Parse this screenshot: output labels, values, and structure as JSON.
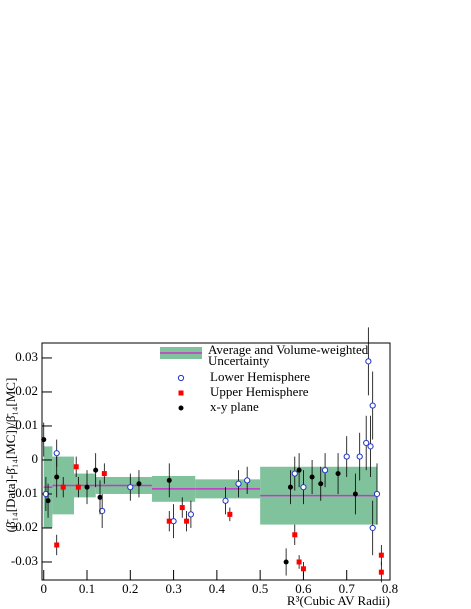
{
  "chart_data": {
    "type": "scatter",
    "y_label": "(β̄₁₄[Data]-β̄₁₄[MC])/β̄₁₄[MC]",
    "x_label": "R³(Cubic AV Radii)",
    "xlim": [
      -0.004,
      0.8
    ],
    "ylim": [
      -0.0353,
      0.0344
    ],
    "xticks": [
      0,
      0.1,
      0.2,
      0.3,
      0.4,
      0.5,
      0.6,
      0.7,
      0.8
    ],
    "yticks": [
      -0.03,
      -0.02,
      -0.01,
      0,
      0.01,
      0.02,
      0.03
    ],
    "average": {
      "name": "Average and Volume-weighted Uncertainty",
      "color": "#7fc29b",
      "line_color": "#cc33cc",
      "bins": [
        0,
        0.02,
        0.07,
        0.12,
        0.25,
        0.35,
        0.5,
        0.77
      ],
      "values": [
        -0.008,
        -0.0075,
        -0.0075,
        -0.0075,
        -0.0085,
        -0.0085,
        -0.0105
      ],
      "errors": [
        0.012,
        0.0085,
        0.0035,
        0.0025,
        0.0038,
        0.0028,
        0.0085
      ]
    },
    "series": [
      {
        "name": "Lower Hemisphere",
        "color": "#2233cc",
        "marker": "open-circle",
        "x": [
          0.005,
          0.03,
          0.135,
          0.2,
          0.3,
          0.34,
          0.42,
          0.45,
          0.47,
          0.58,
          0.6,
          0.65,
          0.7,
          0.73,
          0.745,
          0.75,
          0.755,
          0.76,
          0.76,
          0.77
        ],
        "values": [
          -0.01,
          0.002,
          -0.015,
          -0.008,
          -0.018,
          -0.016,
          -0.012,
          -0.007,
          -0.006,
          -0.004,
          -0.008,
          -0.003,
          0.001,
          0.001,
          0.005,
          0.029,
          0.004,
          0.016,
          -0.02,
          -0.01
        ],
        "errors": [
          0.005,
          0.004,
          0.005,
          0.004,
          0.005,
          0.004,
          0.004,
          0.004,
          0.004,
          0.005,
          0.005,
          0.005,
          0.006,
          0.007,
          0.008,
          0.01,
          0.009,
          0.01,
          0.008,
          0.009
        ]
      },
      {
        "name": "Upper Hemisphere",
        "color": "#ff0000",
        "marker": "square",
        "x": [
          0.03,
          0.045,
          0.075,
          0.08,
          0.14,
          0.29,
          0.32,
          0.33,
          0.43,
          0.58,
          0.59,
          0.6,
          0.78,
          0.78
        ],
        "values": [
          -0.025,
          -0.008,
          -0.002,
          -0.008,
          -0.004,
          -0.018,
          -0.014,
          -0.018,
          -0.016,
          -0.022,
          -0.03,
          -0.032,
          -0.028,
          -0.033
        ],
        "errors": [
          0.003,
          0.003,
          0.003,
          0.003,
          0.003,
          0.003,
          0.003,
          0.003,
          0.002,
          0.003,
          0.002,
          0.002,
          0.003,
          0.003
        ]
      },
      {
        "name": "x-y plane",
        "color": "#000000",
        "marker": "dot",
        "x": [
          0.0,
          0.01,
          0.03,
          0.1,
          0.12,
          0.13,
          0.22,
          0.29,
          0.56,
          0.57,
          0.59,
          0.62,
          0.64,
          0.68,
          0.72
        ],
        "values": [
          0.006,
          -0.012,
          -0.005,
          -0.008,
          -0.003,
          -0.011,
          -0.007,
          -0.006,
          -0.03,
          -0.008,
          -0.003,
          -0.005,
          -0.007,
          -0.004,
          -0.01
        ],
        "errors": [
          0.005,
          0.005,
          0.006,
          0.005,
          0.005,
          0.005,
          0.004,
          0.005,
          0.004,
          0.005,
          0.005,
          0.005,
          0.005,
          0.006,
          0.006
        ]
      }
    ]
  }
}
